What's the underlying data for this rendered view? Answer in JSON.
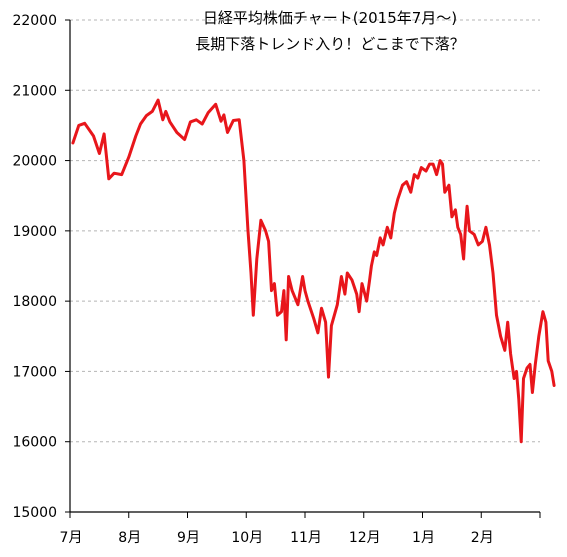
{
  "chart_data": {
    "type": "line",
    "title_line1": "日経平均株価チャート(2015年7月～)",
    "title_line2": "長期下落トレンド入り！どこまで下落？",
    "xlabel": "",
    "ylabel": "",
    "ylim": [
      15000,
      22000
    ],
    "y_ticks": [
      "22000",
      "21000",
      "20000",
      "19000",
      "18000",
      "17000",
      "16000",
      "15000"
    ],
    "x_ticks": [
      "7月",
      "8月",
      "9月",
      "10月",
      "11月",
      "12月",
      "1月",
      "2月"
    ],
    "grid": "horizontal dashed",
    "line_color": "#e8161b",
    "series": [
      {
        "values": [
          [
            0.05,
            20250
          ],
          [
            0.15,
            20500
          ],
          [
            0.25,
            20530
          ],
          [
            0.4,
            20350
          ],
          [
            0.5,
            20100
          ],
          [
            0.58,
            20380
          ],
          [
            0.66,
            19740
          ],
          [
            0.75,
            19820
          ],
          [
            0.88,
            19800
          ],
          [
            1.0,
            20050
          ],
          [
            1.12,
            20350
          ],
          [
            1.2,
            20520
          ],
          [
            1.3,
            20640
          ],
          [
            1.4,
            20700
          ],
          [
            1.5,
            20860
          ],
          [
            1.58,
            20580
          ],
          [
            1.63,
            20700
          ],
          [
            1.7,
            20550
          ],
          [
            1.82,
            20400
          ],
          [
            1.95,
            20300
          ],
          [
            2.05,
            20550
          ],
          [
            2.15,
            20580
          ],
          [
            2.25,
            20520
          ],
          [
            2.35,
            20680
          ],
          [
            2.48,
            20800
          ],
          [
            2.57,
            20560
          ],
          [
            2.62,
            20650
          ],
          [
            2.68,
            20400
          ],
          [
            2.78,
            20570
          ],
          [
            2.88,
            20580
          ],
          [
            2.96,
            20000
          ],
          [
            3.03,
            19000
          ],
          [
            3.08,
            18400
          ],
          [
            3.12,
            17800
          ],
          [
            3.18,
            18600
          ],
          [
            3.25,
            19150
          ],
          [
            3.33,
            19000
          ],
          [
            3.38,
            18850
          ],
          [
            3.43,
            18150
          ],
          [
            3.48,
            18250
          ],
          [
            3.53,
            17800
          ],
          [
            3.6,
            17850
          ],
          [
            3.64,
            18150
          ],
          [
            3.68,
            17450
          ],
          [
            3.72,
            18350
          ],
          [
            3.78,
            18150
          ],
          [
            3.83,
            18050
          ],
          [
            3.88,
            17950
          ],
          [
            3.96,
            18350
          ],
          [
            4.0,
            18150
          ],
          [
            4.05,
            18000
          ],
          [
            4.15,
            17750
          ],
          [
            4.22,
            17550
          ],
          [
            4.28,
            17900
          ],
          [
            4.35,
            17700
          ],
          [
            4.4,
            16920
          ],
          [
            4.45,
            17650
          ],
          [
            4.55,
            17950
          ],
          [
            4.62,
            18350
          ],
          [
            4.68,
            18100
          ],
          [
            4.72,
            18400
          ],
          [
            4.8,
            18300
          ],
          [
            4.88,
            18100
          ],
          [
            4.92,
            17850
          ],
          [
            4.97,
            18250
          ],
          [
            5.05,
            18000
          ],
          [
            5.1,
            18300
          ],
          [
            5.13,
            18500
          ],
          [
            5.18,
            18700
          ],
          [
            5.22,
            18650
          ],
          [
            5.28,
            18900
          ],
          [
            5.33,
            18800
          ],
          [
            5.4,
            19050
          ],
          [
            5.46,
            18900
          ],
          [
            5.52,
            19250
          ],
          [
            5.58,
            19450
          ],
          [
            5.66,
            19650
          ],
          [
            5.73,
            19700
          ],
          [
            5.8,
            19550
          ],
          [
            5.86,
            19800
          ],
          [
            5.92,
            19750
          ],
          [
            5.98,
            19900
          ],
          [
            6.06,
            19850
          ],
          [
            6.12,
            19950
          ],
          [
            6.18,
            19950
          ],
          [
            6.24,
            19800
          ],
          [
            6.3,
            20000
          ],
          [
            6.34,
            19950
          ],
          [
            6.38,
            19550
          ],
          [
            6.45,
            19650
          ],
          [
            6.5,
            19200
          ],
          [
            6.56,
            19300
          ],
          [
            6.6,
            19050
          ],
          [
            6.65,
            18950
          ],
          [
            6.7,
            18600
          ],
          [
            6.73,
            19050
          ],
          [
            6.76,
            19350
          ],
          [
            6.8,
            19000
          ],
          [
            6.88,
            18950
          ],
          [
            6.95,
            18800
          ],
          [
            7.02,
            18850
          ],
          [
            7.08,
            19050
          ],
          [
            7.14,
            18800
          ],
          [
            7.2,
            18400
          ],
          [
            7.26,
            17800
          ],
          [
            7.33,
            17500
          ],
          [
            7.4,
            17300
          ],
          [
            7.45,
            17700
          ],
          [
            7.5,
            17250
          ],
          [
            7.56,
            16900
          ],
          [
            7.6,
            17000
          ],
          [
            7.64,
            16600
          ],
          [
            7.68,
            16000
          ],
          [
            7.72,
            16900
          ],
          [
            7.78,
            17050
          ],
          [
            7.83,
            17100
          ],
          [
            7.87,
            16700
          ],
          [
            7.92,
            17100
          ],
          [
            7.98,
            17500
          ],
          [
            8.05,
            17850
          ],
          [
            8.1,
            17700
          ],
          [
            8.14,
            17150
          ],
          [
            8.2,
            17000
          ],
          [
            8.24,
            16800
          ]
        ]
      }
    ]
  }
}
